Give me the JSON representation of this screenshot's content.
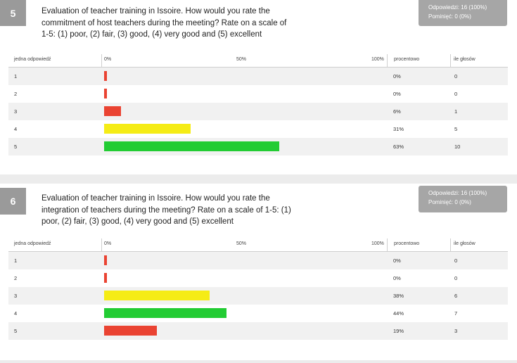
{
  "chart_data": [
    {
      "type": "bar",
      "number": "5",
      "title": "Evaluation of teacher training in Issoire. How would you rate the commitment of host teachers during the meeting? Rate on a scale of 1-5: (1) poor, (2) fair, (3) good, (4) very good and (5) excellent",
      "stats": {
        "answers": "Odpowiedzi: 16 (100%)",
        "skipped": "Pominięć: 0 (0%)"
      },
      "headers": {
        "answer": "jedna odpowiedź",
        "scale_0": "0%",
        "scale_50": "50%",
        "scale_100": "100%",
        "percent": "procentowo",
        "count": "ile głosów"
      },
      "rows": [
        {
          "label": "1",
          "percent_text": "0%",
          "count": "0",
          "value": 0,
          "color": "#ea4332"
        },
        {
          "label": "2",
          "percent_text": "0%",
          "count": "0",
          "value": 0,
          "color": "#ea4332"
        },
        {
          "label": "3",
          "percent_text": "6%",
          "count": "1",
          "value": 6,
          "color": "#ea4332"
        },
        {
          "label": "4",
          "percent_text": "31%",
          "count": "5",
          "value": 31,
          "color": "#f5ec16"
        },
        {
          "label": "5",
          "percent_text": "63%",
          "count": "10",
          "value": 63,
          "color": "#22cc33"
        }
      ],
      "xlim": [
        0,
        100
      ]
    },
    {
      "type": "bar",
      "number": "6",
      "title": "Evaluation of teacher training in Issoire. How would you rate the integration of teachers during the meeting? Rate on a scale of 1-5: (1) poor, (2) fair, (3) good, (4) very good and (5) excellent",
      "stats": {
        "answers": "Odpowiedzi: 16 (100%)",
        "skipped": "Pominięć: 0 (0%)"
      },
      "headers": {
        "answer": "jedna odpowiedź",
        "scale_0": "0%",
        "scale_50": "50%",
        "scale_100": "100%",
        "percent": "procentowo",
        "count": "ile głosów"
      },
      "rows": [
        {
          "label": "1",
          "percent_text": "0%",
          "count": "0",
          "value": 0,
          "color": "#ea4332"
        },
        {
          "label": "2",
          "percent_text": "0%",
          "count": "0",
          "value": 0,
          "color": "#ea4332"
        },
        {
          "label": "3",
          "percent_text": "38%",
          "count": "6",
          "value": 38,
          "color": "#f5ec16"
        },
        {
          "label": "4",
          "percent_text": "44%",
          "count": "7",
          "value": 44,
          "color": "#22cc33"
        },
        {
          "label": "5",
          "percent_text": "19%",
          "count": "3",
          "value": 19,
          "color": "#ea4332"
        }
      ],
      "xlim": [
        0,
        100
      ]
    }
  ]
}
